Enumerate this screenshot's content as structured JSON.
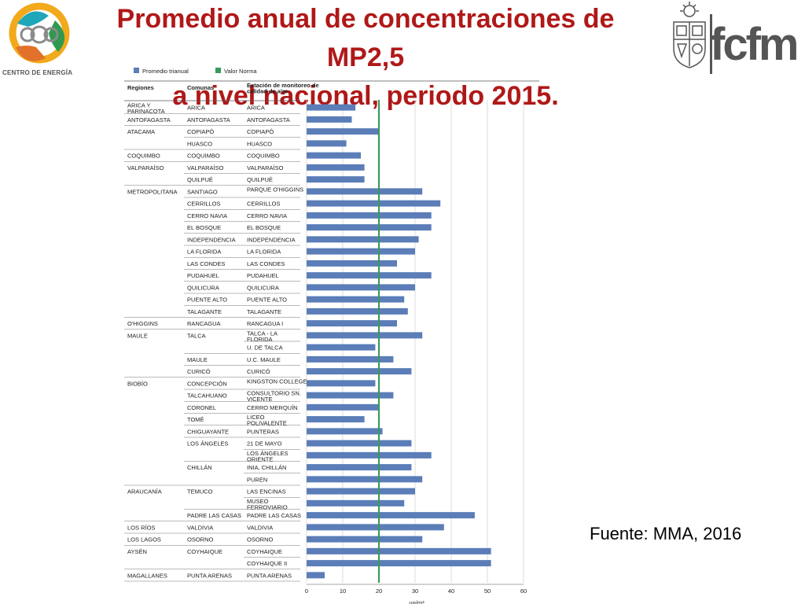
{
  "title": {
    "line1": "Promedio anual de concentraciones de MP2,5",
    "line2": "a nivel nacional, periodo 2015."
  },
  "logo_left": {
    "text": "CENTRO DE ENERGÍA"
  },
  "logo_right": {
    "text": "fcfm"
  },
  "source": "Fuente: MMA, 2016",
  "colors": {
    "bar": "#5b7db8",
    "norm": "#3a9a5a",
    "title": "#b01818"
  },
  "chart_data": {
    "type": "bar",
    "orientation": "horizontal",
    "legend": [
      {
        "name": "Promedio trianual",
        "color": "#5b7db8"
      },
      {
        "name": "Valor Norma",
        "color": "#3a9a5a"
      }
    ],
    "legend_position": "top-left",
    "columns": [
      "Regiones",
      "Comunas",
      "Estación de monitoreo de calidad de aire"
    ],
    "x_unit": "μg/m³",
    "xlim": [
      0,
      60
    ],
    "xticks": [
      0,
      10,
      20,
      30,
      40,
      50,
      60
    ],
    "grid": true,
    "norm_value": 20,
    "rows": [
      {
        "region": "ARICA Y PARINACOTA",
        "comuna": "ARICA",
        "station": "ARICA",
        "value": 13.5
      },
      {
        "region": "ANTOFAGASTA",
        "comuna": "ANTOFAGASTA",
        "station": "ANTOFAGASTA",
        "value": 12.5
      },
      {
        "region": "ATACAMA",
        "comuna": "COPIAPÓ",
        "station": "COPIAPÓ",
        "value": 20
      },
      {
        "region": "",
        "comuna": "HUASCO",
        "station": "HUASCO",
        "value": 11
      },
      {
        "region": "COQUIMBO",
        "comuna": "COQUIMBO",
        "station": "COQUIMBO",
        "value": 15
      },
      {
        "region": "VALPARAÍSO",
        "comuna": "VALPARAÍSO",
        "station": "VALPARAÍSO",
        "value": 16
      },
      {
        "region": "",
        "comuna": "QUILPUÉ",
        "station": "QUILPUÉ",
        "value": 16
      },
      {
        "region": "METROPOLITANA",
        "comuna": "SANTIAGO",
        "station": "PARQUE O'HIGGINS",
        "value": 32
      },
      {
        "region": "",
        "comuna": "CERRILLOS",
        "station": "CERRILLOS",
        "value": 37
      },
      {
        "region": "",
        "comuna": "CERRO NAVIA",
        "station": "CERRO NAVIA",
        "value": 34.5
      },
      {
        "region": "",
        "comuna": "EL BOSQUE",
        "station": "EL BOSQUE",
        "value": 34.5
      },
      {
        "region": "",
        "comuna": "INDEPENDENCIA",
        "station": "INDEPENDENCIA",
        "value": 31
      },
      {
        "region": "",
        "comuna": "LA FLORIDA",
        "station": "LA FLORIDA",
        "value": 30
      },
      {
        "region": "",
        "comuna": "LAS CONDES",
        "station": "LAS CONDES",
        "value": 25
      },
      {
        "region": "",
        "comuna": "PUDAHUEL",
        "station": "PUDAHUEL",
        "value": 34.5
      },
      {
        "region": "",
        "comuna": "QUILICURA",
        "station": "QUILICURA",
        "value": 30
      },
      {
        "region": "",
        "comuna": "PUENTE ALTO",
        "station": "PUENTE ALTO",
        "value": 27
      },
      {
        "region": "",
        "comuna": "TALAGANTE",
        "station": "TALAGANTE",
        "value": 28
      },
      {
        "region": "O'HIGGINS",
        "comuna": "RANCAGUA",
        "station": "RANCAGUA I",
        "value": 25
      },
      {
        "region": "MAULE",
        "comuna": "TALCA",
        "station": "TALCA - LA FLORIDA",
        "value": 32
      },
      {
        "region": "",
        "comuna": "",
        "station": "U. DE TALCA",
        "value": 19
      },
      {
        "region": "",
        "comuna": "MAULE",
        "station": "U.C. MAULE",
        "value": 24
      },
      {
        "region": "",
        "comuna": "CURICÓ",
        "station": "CURICÓ",
        "value": 29
      },
      {
        "region": "BIOBÍO",
        "comuna": "CONCEPCIÓN",
        "station": "KINGSTON COLLEGE",
        "value": 19
      },
      {
        "region": "",
        "comuna": "TALCAHUANO",
        "station": "CONSULTORIO SN. VICENTE",
        "value": 24
      },
      {
        "region": "",
        "comuna": "CORONEL",
        "station": "CERRO MERQUÍN",
        "value": 20
      },
      {
        "region": "",
        "comuna": "TOMÉ",
        "station": "LICEO POLIVALENTE",
        "value": 16
      },
      {
        "region": "",
        "comuna": "CHIGUAYANTE",
        "station": "PUNTERAS",
        "value": 21
      },
      {
        "region": "",
        "comuna": "LOS ÁNGELES",
        "station": "21 DE MAYO",
        "value": 29
      },
      {
        "region": "",
        "comuna": "",
        "station": "LOS ÁNGELES ORIENTE",
        "value": 34.5
      },
      {
        "region": "",
        "comuna": "CHILLÁN",
        "station": "INIA, CHILLÁN",
        "value": 29
      },
      {
        "region": "",
        "comuna": "",
        "station": "PUREN",
        "value": 32
      },
      {
        "region": "ARAUCANÍA",
        "comuna": "TEMUCO",
        "station": "LAS ENCINAS",
        "value": 30
      },
      {
        "region": "",
        "comuna": "",
        "station": "MUSEO FERROVIARIO",
        "value": 27
      },
      {
        "region": "",
        "comuna": "PADRE LAS CASAS",
        "station": "PADRE LAS CASAS",
        "value": 46.5
      },
      {
        "region": "LOS RÍOS",
        "comuna": "VALDIVIA",
        "station": "VALDIVIA",
        "value": 38
      },
      {
        "region": "LOS LAGOS",
        "comuna": "OSORNO",
        "station": "OSORNO",
        "value": 32
      },
      {
        "region": "AYSÉN",
        "comuna": "COYHAIQUE",
        "station": "COYHAIQUE",
        "value": 51
      },
      {
        "region": "",
        "comuna": "",
        "station": "COYHAIQUE II",
        "value": 51
      },
      {
        "region": "MAGALLANES",
        "comuna": "PUNTA ARENAS",
        "station": "PUNTA ARENAS",
        "value": 5
      }
    ]
  }
}
